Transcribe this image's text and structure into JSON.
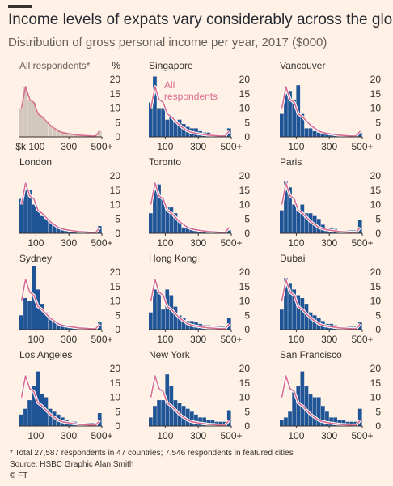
{
  "title": "Income levels of expats vary considerably across the globe",
  "subtitle": "Distribution of gross personal income per year, 2017 ($000)",
  "footnotes": {
    "note": "* Total 27,587 respondents in 47 countries; 7,546 respondents in featured cities",
    "source": "Source: HSBC   Graphic Alan Smith",
    "credit": "© FT"
  },
  "colors": {
    "background": "#fff1e5",
    "bar": "#1f5596",
    "all_bar": "#d3c8bc",
    "line": "#d96c8f",
    "baseline": "#33302e",
    "grid_text": "#33302e"
  },
  "chart_data": {
    "type": "bar",
    "bin_width_thousand_usd": 25,
    "x_tick_values": [
      100,
      300,
      500
    ],
    "x_tick_labels": [
      "100",
      "300",
      "500+"
    ],
    "first_panel_x_tick_labels": [
      "$k 100",
      "300",
      "500+"
    ],
    "y_ticks": [
      0,
      5,
      10,
      15,
      20
    ],
    "y_unit": "%",
    "ylim": [
      0,
      22
    ],
    "all_respondents_label": "All respondents",
    "all_respondents": [
      10,
      17.5,
      13,
      12,
      8,
      7,
      5.5,
      4,
      3,
      2,
      1.5,
      1.2,
      1,
      0.8,
      0.6,
      0.5,
      0.4,
      0.3,
      0.3,
      2
    ],
    "panels": [
      {
        "title": "All respondents*",
        "is_overall": true,
        "values": [
          10,
          17.5,
          13,
          12,
          8,
          7,
          5.5,
          4,
          3,
          2,
          1.5,
          1.2,
          1,
          0.8,
          0.6,
          0.5,
          0.4,
          0.3,
          0.3,
          2
        ]
      },
      {
        "title": "Singapore",
        "values": [
          12,
          21,
          10,
          10,
          6,
          7,
          5,
          6,
          4.5,
          3.5,
          3,
          3,
          2,
          1.5,
          1.5,
          1,
          1,
          1,
          1,
          3
        ],
        "legend": true
      },
      {
        "title": "Vancouver",
        "values": [
          8,
          15,
          16,
          13,
          18,
          8,
          3,
          3,
          2,
          1.5,
          1.5,
          1,
          1,
          0.5,
          0.5,
          0.5,
          0.5,
          0.5,
          0.5,
          1.5
        ]
      },
      {
        "title": "London",
        "values": [
          12,
          17,
          15,
          10,
          8,
          6,
          5,
          4,
          3,
          2,
          1.5,
          1,
          1,
          0.5,
          0.5,
          0.5,
          0.3,
          0.3,
          0.3,
          2.5
        ]
      },
      {
        "title": "Toronto",
        "values": [
          7,
          15,
          17,
          12,
          9,
          9,
          7,
          4,
          2,
          2,
          1.5,
          1,
          1,
          0.5,
          0.5,
          0.5,
          0.3,
          0.3,
          0.3,
          1
        ]
      },
      {
        "title": "Paris",
        "values": [
          8,
          18,
          16,
          10,
          8,
          10,
          7,
          7,
          6,
          5,
          3,
          2,
          2,
          1.5,
          1,
          1,
          1,
          1,
          1,
          4.5
        ]
      },
      {
        "title": "Sydney",
        "values": [
          5,
          11,
          10,
          22,
          14,
          9,
          6,
          4,
          3,
          2,
          1.5,
          1,
          1,
          0.5,
          0.5,
          0.5,
          0.5,
          0.5,
          0.5,
          2.5
        ]
      },
      {
        "title": "Hong Kong",
        "values": [
          6,
          14,
          13,
          7,
          14,
          12,
          8,
          5,
          4,
          3,
          3,
          2.5,
          2,
          1.5,
          1.5,
          1,
          1,
          1,
          1,
          4
        ]
      },
      {
        "title": "Dubai",
        "values": [
          7,
          18,
          16,
          14,
          12,
          11,
          9,
          6,
          5,
          4,
          3,
          2,
          2,
          1.5,
          1,
          1,
          1,
          1,
          1,
          2.5
        ]
      },
      {
        "title": "Los Angeles",
        "values": [
          4,
          6,
          9,
          14,
          19,
          11,
          10,
          6,
          5,
          4,
          3,
          2,
          1.5,
          1.5,
          1,
          1,
          1,
          1,
          1,
          4.5
        ]
      },
      {
        "title": "New York",
        "values": [
          3,
          7,
          9,
          9,
          18,
          14,
          9,
          8,
          7,
          6,
          5,
          4,
          3,
          3,
          2,
          2,
          1.5,
          1.5,
          1.5,
          5.5
        ]
      },
      {
        "title": "San Francisco",
        "values": [
          2,
          3,
          5,
          12,
          14,
          19,
          14,
          11,
          10,
          10,
          7,
          5,
          3,
          3,
          2,
          2,
          1.5,
          1.5,
          1.5,
          6
        ]
      }
    ]
  }
}
